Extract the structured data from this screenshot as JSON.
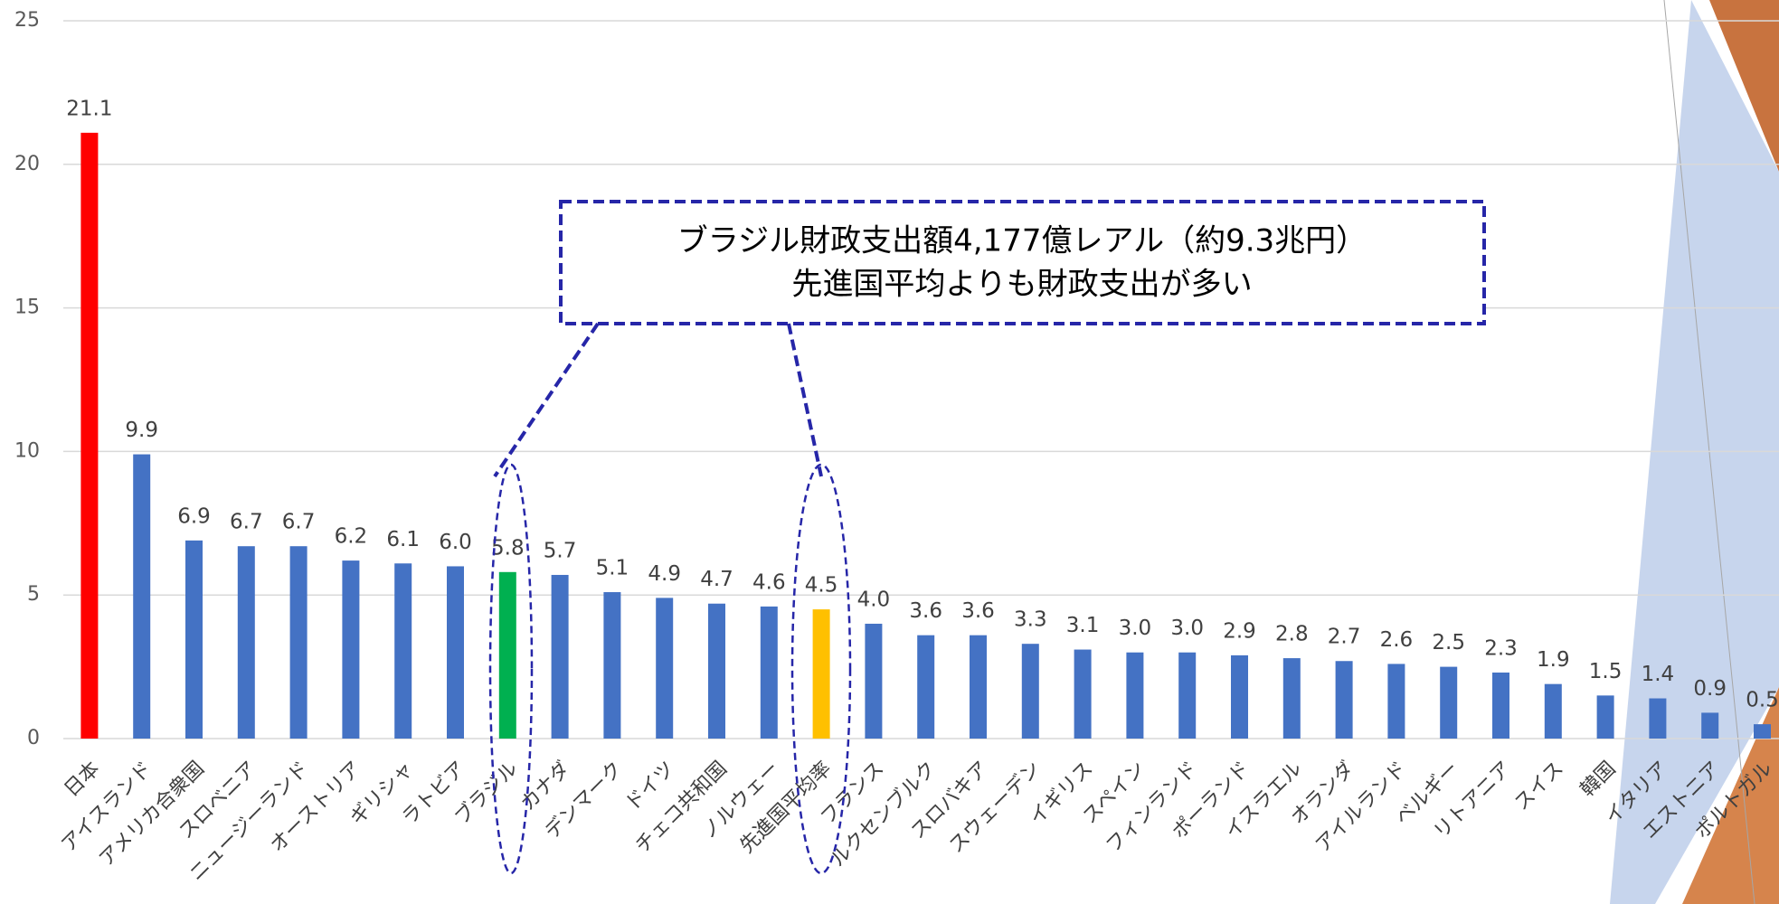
{
  "chart_data": {
    "type": "bar",
    "categories": [
      "日本",
      "アイスランド",
      "アメリカ合衆国",
      "スロベニア",
      "ニュージーランド",
      "オーストリア",
      "ギリシャ",
      "ラトビア",
      "ブラジル",
      "カナダ",
      "デンマーク",
      "ドイツ",
      "チェコ共和国",
      "ノルウェー",
      "先進国平均率",
      "フランス",
      "ルクセンブルク",
      "スロバキア",
      "スウェーデン",
      "イギリス",
      "スペイン",
      "フィンランド",
      "ポーランド",
      "イスラエル",
      "オランダ",
      "アイルランド",
      "ベルギー",
      "リトアニア",
      "スイス",
      "韓国",
      "イタリア",
      "エストニア",
      "ポルトガル"
    ],
    "values": [
      21.1,
      9.9,
      6.9,
      6.7,
      6.7,
      6.2,
      6.1,
      6.0,
      5.8,
      5.7,
      5.1,
      4.9,
      4.7,
      4.6,
      4.5,
      4.0,
      3.6,
      3.6,
      3.3,
      3.1,
      3.0,
      3.0,
      2.9,
      2.8,
      2.7,
      2.6,
      2.5,
      2.3,
      1.9,
      1.5,
      1.4,
      0.9,
      0.5
    ],
    "value_labels": [
      "21.1",
      "9.9",
      "6.9",
      "6.7",
      "6.7",
      "6.2",
      "6.1",
      "6.0",
      "5.8",
      "5.7",
      "5.1",
      "4.9",
      "4.7",
      "4.6",
      "4.5",
      "4.0",
      "3.6",
      "3.6",
      "3.3",
      "3.1",
      "3.0",
      "3.0",
      "2.9",
      "2.8",
      "2.7",
      "2.6",
      "2.5",
      "2.3",
      "1.9",
      "1.5",
      "1.4",
      "0.9",
      "0.5"
    ],
    "colors": [
      "#ff0000",
      "#4472c4",
      "#4472c4",
      "#4472c4",
      "#4472c4",
      "#4472c4",
      "#4472c4",
      "#4472c4",
      "#00b050",
      "#4472c4",
      "#4472c4",
      "#4472c4",
      "#4472c4",
      "#4472c4",
      "#ffc000",
      "#4472c4",
      "#4472c4",
      "#4472c4",
      "#4472c4",
      "#4472c4",
      "#4472c4",
      "#4472c4",
      "#4472c4",
      "#4472c4",
      "#4472c4",
      "#4472c4",
      "#4472c4",
      "#4472c4",
      "#4472c4",
      "#4472c4",
      "#4472c4",
      "#4472c4",
      "#4472c4"
    ],
    "ylim": [
      0,
      25
    ],
    "yticks": [
      0,
      5,
      10,
      15,
      20,
      25
    ],
    "grid": true,
    "annotation": {
      "lines": [
        "ブラジル財政支出額4,177億レアル（約9.3兆円）",
        "先進国平均よりも財政支出が多い"
      ]
    }
  }
}
